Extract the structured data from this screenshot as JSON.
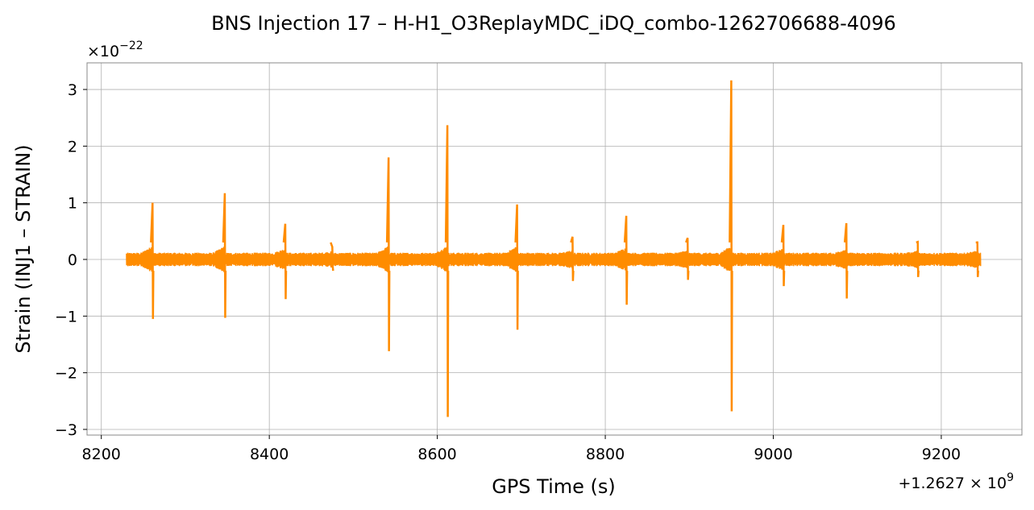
{
  "chart_data": {
    "type": "line",
    "title": "BNS Injection 17 – H-H1_O3ReplayMDC_iDQ_combo-1262706688-4096",
    "xlabel": "GPS Time (s)",
    "ylabel": "Strain (INJ1 – STRAIN)",
    "x_offset_label": "+1.2627 × 10",
    "x_offset_exp": "9",
    "y_scale_label": "×10",
    "y_scale_exp": "−22",
    "xlim": [
      8183,
      9296
    ],
    "ylim": [
      -3.1,
      3.47
    ],
    "xticks": [
      8200,
      8400,
      8600,
      8800,
      9000,
      9200
    ],
    "xtick_labels": [
      "8200",
      "8400",
      "8600",
      "8800",
      "9000",
      "9200"
    ],
    "yticks": [
      -3,
      -2,
      -1,
      0,
      1,
      2,
      3
    ],
    "ytick_labels": [
      "−3",
      "−2",
      "−1",
      "0",
      "1",
      "2",
      "3"
    ],
    "grid": true,
    "color": "#ff8c00",
    "data_range": [
      8230,
      9247
    ],
    "noise_amplitude": 0.12,
    "glitches": [
      {
        "x": 8261,
        "max": 1.0,
        "min": -1.05
      },
      {
        "x": 8347,
        "max": 1.17,
        "min": -1.03
      },
      {
        "x": 8419,
        "max": 0.63,
        "min": -0.7
      },
      {
        "x": 8475,
        "max": 0.22,
        "min": -0.12
      },
      {
        "x": 8542,
        "max": 1.8,
        "min": -1.62
      },
      {
        "x": 8612,
        "max": 2.37,
        "min": -2.78
      },
      {
        "x": 8695,
        "max": 0.97,
        "min": -1.24
      },
      {
        "x": 8761,
        "max": 0.4,
        "min": -0.38
      },
      {
        "x": 8825,
        "max": 0.77,
        "min": -0.8
      },
      {
        "x": 8898,
        "max": 0.38,
        "min": -0.36
      },
      {
        "x": 8950,
        "max": 3.16,
        "min": -2.68
      },
      {
        "x": 9012,
        "max": 0.61,
        "min": -0.47
      },
      {
        "x": 9087,
        "max": 0.64,
        "min": -0.69
      },
      {
        "x": 9172,
        "max": 0.31,
        "min": -0.31
      },
      {
        "x": 9243,
        "max": 0.3,
        "min": -0.31
      }
    ]
  }
}
